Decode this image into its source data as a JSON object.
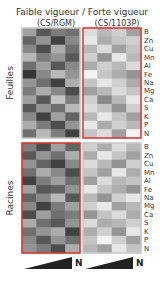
{
  "chart_data": {
    "type": "heatmap",
    "title": "Faible vigueur / Forte vigueur",
    "subtitles": [
      "(CS/RGM)",
      "(CS/1103P)"
    ],
    "row_labels": [
      "Feuilles",
      "Racines"
    ],
    "x_label": "N",
    "categories": [
      null,
      null,
      null,
      null
    ],
    "rows": [
      "B",
      "Zn",
      "Cu",
      "Mn",
      "Al",
      "Fe",
      "Na",
      "Mg",
      "Ca",
      "S",
      "K",
      "P",
      "N"
    ],
    "color_range": [
      0,
      100
    ],
    "tick_labels": "y",
    "panels": [
      [
        {
          "color": "#c8c8c8",
          "cells": [
            [
              40,
              70,
              55,
              60
            ],
            [
              65,
              45,
              80,
              50
            ],
            [
              50,
              75,
              35,
              60
            ],
            [
              30,
              55,
              45,
              70
            ],
            [
              60,
              40,
              70,
              50
            ],
            [
              85,
              50,
              30,
              45
            ],
            [
              45,
              60,
              80,
              35
            ],
            [
              55,
              35,
              50,
              75
            ],
            [
              40,
              70,
              25,
              55
            ],
            [
              70,
              45,
              60,
              30
            ],
            [
              50,
              80,
              40,
              65
            ],
            [
              35,
              55,
              75,
              45
            ],
            [
              60,
              30,
              55,
              80
            ]
          ]
        },
        {
          "color": "#e0312e",
          "cells": [
            [
              15,
              30,
              20,
              40
            ],
            [
              10,
              35,
              25,
              20
            ],
            [
              30,
              15,
              40,
              25
            ],
            [
              20,
              45,
              10,
              30
            ],
            [
              35,
              20,
              30,
              15
            ],
            [
              5,
              25,
              35,
              45
            ],
            [
              25,
              10,
              20,
              35
            ],
            [
              40,
              30,
              15,
              25
            ],
            [
              20,
              50,
              30,
              10
            ],
            [
              15,
              25,
              45,
              20
            ],
            [
              30,
              10,
              25,
              40
            ],
            [
              10,
              35,
              20,
              30
            ],
            [
              25,
              15,
              40,
              5
            ]
          ]
        }
      ],
      [
        {
          "color": "#e0312e",
          "cells": [
            [
              55,
              75,
              40,
              65
            ],
            [
              70,
              45,
              60,
              35
            ],
            [
              45,
              65,
              80,
              50
            ],
            [
              60,
              35,
              50,
              75
            ],
            [
              80,
              55,
              40,
              60
            ],
            [
              40,
              70,
              65,
              45
            ],
            [
              65,
              50,
              30,
              70
            ],
            [
              50,
              80,
              55,
              40
            ],
            [
              75,
              40,
              60,
              55
            ],
            [
              35,
              60,
              70,
              45
            ],
            [
              60,
              45,
              35,
              80
            ],
            [
              50,
              70,
              45,
              60
            ],
            [
              45,
              55,
              75,
              35
            ]
          ]
        },
        {
          "color": "#c8c8c8",
          "cells": [
            [
              20,
              35,
              15,
              30
            ],
            [
              35,
              10,
              25,
              40
            ],
            [
              15,
              30,
              45,
              20
            ],
            [
              25,
              40,
              10,
              35
            ],
            [
              40,
              15,
              30,
              25
            ],
            [
              10,
              25,
              35,
              45
            ],
            [
              30,
              45,
              20,
              10
            ],
            [
              20,
              10,
              40,
              30
            ],
            [
              45,
              25,
              15,
              35
            ],
            [
              15,
              35,
              30,
              20
            ],
            [
              35,
              20,
              45,
              10
            ],
            [
              25,
              5,
              20,
              40
            ],
            [
              30,
              40,
              10,
              25
            ]
          ]
        }
      ]
    ]
  }
}
